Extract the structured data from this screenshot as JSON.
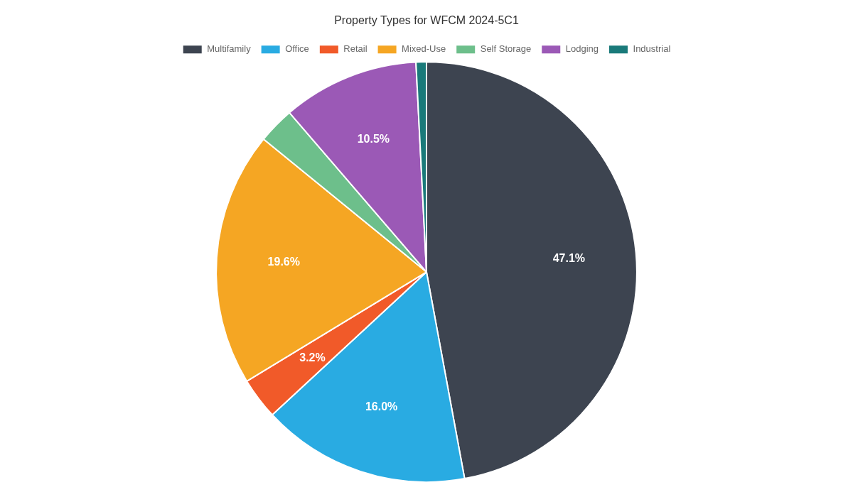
{
  "chart_data": {
    "type": "pie",
    "title": "Property Types for WFCM 2024-5C1",
    "categories": [
      "Multifamily",
      "Office",
      "Retail",
      "Mixed-Use",
      "Self Storage",
      "Lodging",
      "Industrial"
    ],
    "values": [
      47.1,
      16.0,
      3.2,
      19.6,
      2.8,
      10.5,
      0.8
    ],
    "value_labels": [
      "47.1%",
      "16.0%",
      "3.2%",
      "19.6%",
      null,
      "10.5%",
      null
    ],
    "colors": [
      "#3d4450",
      "#29abe2",
      "#f15a29",
      "#f5a623",
      "#6dbf8b",
      "#9b59b6",
      "#1a7a7a"
    ],
    "data_labels": true,
    "legend": "top"
  }
}
